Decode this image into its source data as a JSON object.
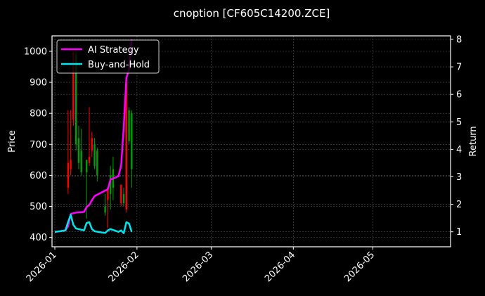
{
  "chart_data": {
    "type": "line",
    "title": "cnoption [CF605C14200.ZCE]",
    "xlabel": "",
    "ylabel": "Price",
    "y2label": "Return",
    "ylim": [
      370,
      1045
    ],
    "y2lim": [
      0.55,
      8.1
    ],
    "xlim": [
      "2025-12-31",
      "2026-05-29"
    ],
    "grid": true,
    "legend_position": "upper left",
    "x_ticks": [
      "2026-01",
      "2026-02",
      "2026-03",
      "2026-04",
      "2026-05"
    ],
    "y_ticks": [
      400,
      500,
      600,
      700,
      800,
      900,
      1000
    ],
    "y2_ticks": [
      1,
      2,
      3,
      4,
      5,
      6,
      7,
      8
    ],
    "candles": {
      "name": "Price",
      "up_color": "#00a000",
      "down_color": "#ff0000",
      "data": [
        {
          "day": 5,
          "open": 640,
          "close": 560,
          "high": 810,
          "low": 540
        },
        {
          "day": 6,
          "open": 650,
          "close": 620,
          "high": 810,
          "low": 600
        },
        {
          "day": 7,
          "open": 1000,
          "close": 780,
          "high": 1000,
          "low": 760
        },
        {
          "day": 8,
          "open": 700,
          "close": 990,
          "high": 1000,
          "low": 680
        },
        {
          "day": 9,
          "open": 640,
          "close": 720,
          "high": 760,
          "low": 620
        },
        {
          "day": 10,
          "open": 610,
          "close": 680,
          "high": 750,
          "low": 600
        },
        {
          "day": 12,
          "open": 610,
          "close": 650,
          "high": 650,
          "low": 460
        },
        {
          "day": 13,
          "open": 660,
          "close": 640,
          "high": 820,
          "low": 630
        },
        {
          "day": 14,
          "open": 720,
          "close": 680,
          "high": 740,
          "low": 660
        },
        {
          "day": 15,
          "open": 630,
          "close": 700,
          "high": 720,
          "low": 620
        },
        {
          "day": 16,
          "open": 600,
          "close": 680,
          "high": 690,
          "low": 580
        },
        {
          "day": 19,
          "open": 480,
          "close": 500,
          "high": 540,
          "low": 470
        },
        {
          "day": 20,
          "open": 560,
          "close": 520,
          "high": 560,
          "low": 430
        },
        {
          "day": 21,
          "open": 540,
          "close": 600,
          "high": 630,
          "low": 490
        },
        {
          "day": 22,
          "open": 560,
          "close": 620,
          "high": 660,
          "low": 520
        },
        {
          "day": 25,
          "open": 570,
          "close": 510,
          "high": 570,
          "low": 500
        },
        {
          "day": 26,
          "open": 510,
          "close": 540,
          "high": 560,
          "low": 500
        },
        {
          "day": 27,
          "open": 900,
          "close": 490,
          "high": 920,
          "low": 480
        },
        {
          "day": 28,
          "open": 710,
          "close": 810,
          "high": 820,
          "low": 700
        },
        {
          "day": 29,
          "open": 620,
          "close": 800,
          "high": 810,
          "low": 560
        }
      ]
    },
    "series": [
      {
        "name": "AI Strategy",
        "color": "#ff00ff",
        "axis": "right",
        "x_days": [
          0,
          2,
          4,
          5,
          6,
          8,
          11,
          12,
          13,
          14,
          15,
          18,
          19,
          20,
          21,
          24,
          25,
          26,
          27,
          28,
          29
        ],
        "values": [
          1.0,
          1.02,
          1.05,
          1.2,
          1.65,
          1.7,
          1.72,
          1.9,
          1.98,
          2.15,
          2.3,
          2.45,
          2.5,
          2.55,
          2.9,
          3.02,
          3.4,
          4.8,
          6.6,
          6.9,
          8.0
        ]
      },
      {
        "name": "Buy-and-Hold",
        "color": "#00e5ee",
        "axis": "right",
        "x_days": [
          0,
          2,
          4,
          5,
          6,
          7,
          8,
          11,
          12,
          13,
          14,
          15,
          18,
          19,
          20,
          21,
          24,
          25,
          26,
          27,
          28,
          29
        ],
        "values": [
          1.0,
          1.02,
          1.05,
          1.35,
          1.62,
          1.25,
          1.12,
          1.05,
          1.32,
          1.35,
          1.1,
          1.02,
          0.97,
          0.96,
          1.05,
          1.1,
          1.0,
          1.05,
          0.95,
          1.35,
          1.3,
          1.0
        ]
      }
    ]
  },
  "legend": {
    "items": [
      {
        "label": "AI Strategy",
        "color": "#ff00ff"
      },
      {
        "label": "Buy-and-Hold",
        "color": "#00e5ee"
      }
    ]
  },
  "axes": {
    "left_label": "Price",
    "right_label": "Return",
    "x_tick_labels": [
      "2026-01",
      "2026-02",
      "2026-03",
      "2026-04",
      "2026-05"
    ],
    "y_tick_labels": [
      "400",
      "500",
      "600",
      "700",
      "800",
      "900",
      "1000"
    ],
    "y2_tick_labels": [
      "1",
      "2",
      "3",
      "4",
      "5",
      "6",
      "7",
      "8"
    ]
  },
  "title": "cnoption [CF605C14200.ZCE]",
  "colors": {
    "background": "#000000",
    "frame": "#ffffff",
    "grid": "#555555"
  }
}
